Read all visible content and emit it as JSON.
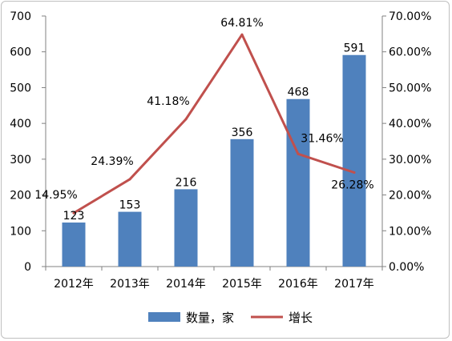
{
  "chart_data": {
    "type": "bar",
    "categories": [
      "2012年",
      "2013年",
      "2014年",
      "2015年",
      "2016年",
      "2017年"
    ],
    "series": [
      {
        "name": "数量，家",
        "type": "bar",
        "axis": "left",
        "values": [
          123,
          153,
          216,
          356,
          468,
          591
        ],
        "labels": [
          "123",
          "153",
          "216",
          "356",
          "468",
          "591"
        ]
      },
      {
        "name": "增长",
        "type": "line",
        "axis": "right",
        "values": [
          14.95,
          24.39,
          41.18,
          64.81,
          31.46,
          26.28
        ],
        "labels": [
          "14.95%",
          "24.39%",
          "41.18%",
          "64.81%",
          "31.46%",
          "26.28%"
        ]
      }
    ],
    "left_axis": {
      "ylim": [
        0,
        700
      ],
      "ticks": [
        "0",
        "100",
        "200",
        "300",
        "400",
        "500",
        "600",
        "700"
      ]
    },
    "right_axis": {
      "ylim": [
        0,
        70
      ],
      "ticks": [
        "0.00%",
        "10.00%",
        "20.00%",
        "30.00%",
        "40.00%",
        "50.00%",
        "60.00%",
        "70.00%"
      ]
    },
    "grid": false,
    "legend_position": "bottom",
    "colors": {
      "bar": "#4f81bd",
      "line": "#c0504d",
      "axis": "#808080"
    }
  }
}
